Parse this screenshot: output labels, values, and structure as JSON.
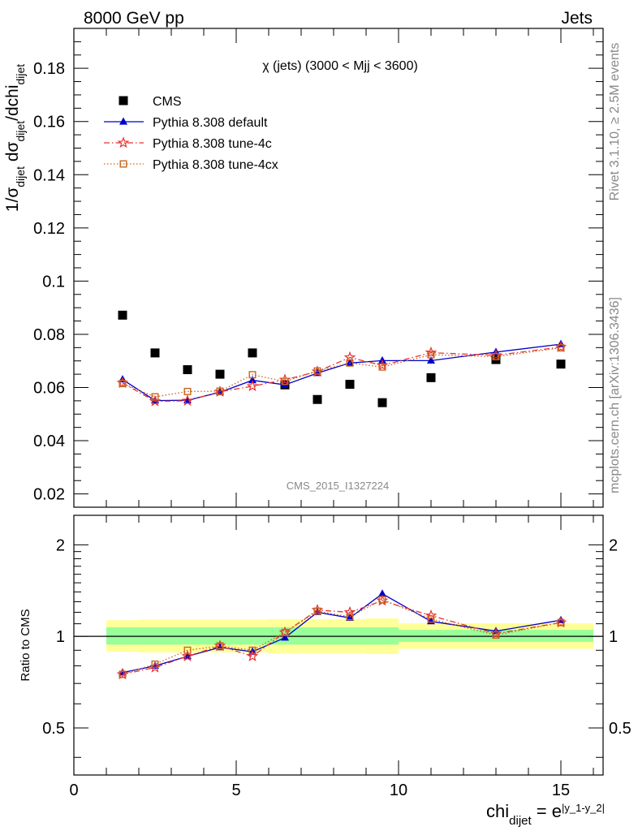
{
  "header": {
    "left": "8000 GeV pp",
    "right": "Jets",
    "rivet_note": "Rivet 3.1.10, ≥ 2.5M events",
    "mcplots_note": "mcplots.cern.ch [arXiv:1306.3436]",
    "analysis_id": "CMS_2015_I1327224"
  },
  "chart_data": [
    {
      "type": "scatter",
      "title": "χ (jets) (3000 < Mjj < 3600)",
      "xlabel": "chi_dijet = e^|y_1-y_2|",
      "ylabel": "1/σ_dijet dσ_dijet/dchi_dijet",
      "xlim": [
        0,
        16.3
      ],
      "ylim": [
        0.015,
        0.195
      ],
      "yticks": [
        "0.02",
        "0.04",
        "0.06",
        "0.08",
        "0.1",
        "0.12",
        "0.14",
        "0.16",
        "0.18"
      ],
      "legend_position": "top-left",
      "series": [
        {
          "name": "CMS",
          "color": "#000000",
          "marker": "square",
          "x": [
            1.5,
            2.5,
            3.5,
            4.5,
            5.5,
            6.5,
            7.5,
            8.5,
            9.5,
            11.0,
            13.0,
            15.0
          ],
          "y": [
            0.0872,
            0.073,
            0.0667,
            0.065,
            0.073,
            0.061,
            0.0555,
            0.0612,
            0.0543,
            0.0637,
            0.0705,
            0.0688
          ]
        },
        {
          "name": "Pythia 8.308 default",
          "color": "#0000cc",
          "marker": "triangle",
          "line": "solid",
          "x": [
            1.5,
            2.5,
            3.5,
            4.5,
            5.5,
            6.5,
            7.5,
            8.5,
            9.5,
            11.0,
            13.0,
            15.0
          ],
          "y": [
            0.063,
            0.0551,
            0.0552,
            0.0582,
            0.0627,
            0.061,
            0.0654,
            0.0692,
            0.0701,
            0.0701,
            0.0733,
            0.0763
          ]
        },
        {
          "name": "Pythia 8.308 tune-4c",
          "color": "#e8332e",
          "marker": "star",
          "line": "dashdot",
          "x": [
            1.5,
            2.5,
            3.5,
            4.5,
            5.5,
            6.5,
            7.5,
            8.5,
            9.5,
            11.0,
            13.0,
            15.0
          ],
          "y": [
            0.0617,
            0.0548,
            0.055,
            0.0584,
            0.0605,
            0.0629,
            0.066,
            0.0713,
            0.0683,
            0.0731,
            0.0721,
            0.0752
          ]
        },
        {
          "name": "Pythia 8.308 tune-4cx",
          "color": "#c8641e",
          "marker": "open-square",
          "line": "dotted",
          "x": [
            1.5,
            2.5,
            3.5,
            4.5,
            5.5,
            6.5,
            7.5,
            8.5,
            9.5,
            11.0,
            13.0,
            15.0
          ],
          "y": [
            0.0615,
            0.0565,
            0.0585,
            0.0586,
            0.0648,
            0.0623,
            0.0662,
            0.0692,
            0.0677,
            0.0723,
            0.0716,
            0.0749
          ]
        }
      ]
    },
    {
      "type": "line",
      "ylabel": "Ratio to CMS",
      "xlabel": "chi_dijet = e^|y_1-y_2|",
      "xlim": [
        0,
        16.3
      ],
      "ylim": [
        0.35,
        2.5
      ],
      "ylog": true,
      "yticks": [
        "0.5",
        "1",
        "2"
      ],
      "xticks": [
        "0",
        "5",
        "10",
        "15"
      ],
      "reference": 1,
      "bands": [
        {
          "name": "inner",
          "color": "#99ff99",
          "bins": [
            [
              1,
              2,
              0.94,
              1.07
            ],
            [
              2,
              3,
              0.94,
              1.07
            ],
            [
              3,
              4,
              0.94,
              1.07
            ],
            [
              4,
              5,
              0.94,
              1.07
            ],
            [
              5,
              6,
              0.94,
              1.07
            ],
            [
              6,
              7,
              0.94,
              1.07
            ],
            [
              7,
              8,
              0.94,
              1.07
            ],
            [
              8,
              9,
              0.94,
              1.07
            ],
            [
              9,
              10,
              0.94,
              1.07
            ],
            [
              10,
              12,
              0.96,
              1.05
            ],
            [
              12,
              14,
              0.96,
              1.05
            ],
            [
              14,
              16,
              0.96,
              1.05
            ]
          ]
        },
        {
          "name": "outer",
          "color": "#ffff99",
          "bins": [
            [
              1,
              2,
              0.89,
              1.13
            ],
            [
              2,
              3,
              0.885,
              1.135
            ],
            [
              3,
              4,
              0.885,
              1.135
            ],
            [
              4,
              5,
              0.885,
              1.135
            ],
            [
              5,
              6,
              0.885,
              1.135
            ],
            [
              6,
              7,
              0.88,
              1.14
            ],
            [
              7,
              8,
              0.88,
              1.14
            ],
            [
              8,
              9,
              0.88,
              1.14
            ],
            [
              9,
              10,
              0.875,
              1.145
            ],
            [
              10,
              12,
              0.91,
              1.105
            ],
            [
              12,
              14,
              0.91,
              1.105
            ],
            [
              14,
              16,
              0.91,
              1.105
            ]
          ]
        }
      ],
      "series": [
        {
          "name": "Pythia 8.308 default",
          "color": "#0000cc",
          "marker": "triangle",
          "line": "solid",
          "x": [
            1.5,
            2.5,
            3.5,
            4.5,
            5.5,
            6.5,
            7.5,
            8.5,
            9.5,
            11.0,
            13.0,
            15.0
          ],
          "y": [
            0.76,
            0.8,
            0.86,
            0.92,
            0.89,
            0.99,
            1.2,
            1.15,
            1.38,
            1.12,
            1.04,
            1.13
          ]
        },
        {
          "name": "Pythia 8.308 tune-4c",
          "color": "#e8332e",
          "marker": "star",
          "line": "dashdot",
          "x": [
            1.5,
            2.5,
            3.5,
            4.5,
            5.5,
            6.5,
            7.5,
            8.5,
            9.5,
            11.0,
            13.0,
            15.0
          ],
          "y": [
            0.75,
            0.79,
            0.86,
            0.93,
            0.86,
            1.03,
            1.22,
            1.2,
            1.31,
            1.17,
            1.02,
            1.11
          ]
        },
        {
          "name": "Pythia 8.308 tune-4cx",
          "color": "#c8641e",
          "marker": "open-square",
          "line": "dotted",
          "x": [
            1.5,
            2.5,
            3.5,
            4.5,
            5.5,
            6.5,
            7.5,
            8.5,
            9.5,
            11.0,
            13.0,
            15.0
          ],
          "y": [
            0.75,
            0.81,
            0.9,
            0.93,
            0.9,
            1.03,
            1.21,
            1.16,
            1.32,
            1.14,
            1.01,
            1.11
          ]
        }
      ]
    }
  ]
}
